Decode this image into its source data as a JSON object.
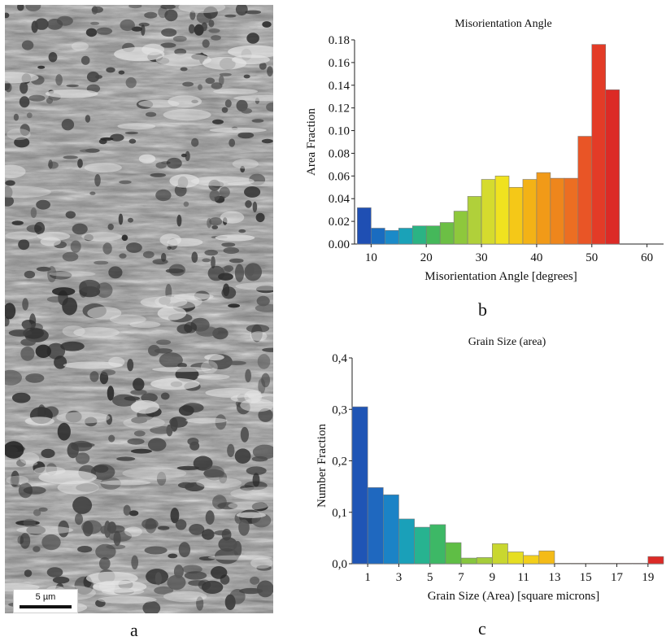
{
  "panels": {
    "a": {
      "letter": "a",
      "scale_bar_label": "5 µm"
    },
    "b": {
      "letter": "b"
    },
    "c": {
      "letter": "c"
    }
  },
  "chart_data": [
    {
      "type": "bar",
      "title": "Misorientation Angle",
      "xlabel": "Misorientation Angle [degrees]",
      "ylabel": "Area Fraction",
      "xlim": [
        7,
        63
      ],
      "ylim": [
        0,
        0.18
      ],
      "xticks": [
        10,
        20,
        30,
        40,
        50,
        60
      ],
      "yticks": [
        0.0,
        0.02,
        0.04,
        0.06,
        0.08,
        0.1,
        0.12,
        0.14,
        0.16,
        0.18
      ],
      "ytick_labels": [
        "0.00",
        "0.02",
        "0.04",
        "0.06",
        "0.08",
        "0.10",
        "0.12",
        "0.14",
        "0.16",
        "0.18"
      ],
      "bin_width": 2.5,
      "bins_start": 7.5,
      "values": [
        0.032,
        0.014,
        0.012,
        0.014,
        0.016,
        0.016,
        0.019,
        0.029,
        0.042,
        0.057,
        0.06,
        0.05,
        0.057,
        0.063,
        0.058,
        0.058,
        0.095,
        0.176,
        0.136
      ],
      "colors": [
        "#1f4fb3",
        "#1a6cc0",
        "#1b8ac8",
        "#1aa2b8",
        "#2bb384",
        "#45b85a",
        "#6cbf45",
        "#8ec83c",
        "#b0d03a",
        "#d5db2e",
        "#f0e21f",
        "#f5c818",
        "#f3b216",
        "#f19a18",
        "#ee861c",
        "#ec6e22",
        "#e95526",
        "#e33b27",
        "#dc2a26"
      ],
      "grid": false
    },
    {
      "type": "bar",
      "title": "Grain Size (area)",
      "xlabel": "Grain Size (Area)  [square microns]",
      "ylabel": "Number Fraction",
      "xlim": [
        0,
        20
      ],
      "ylim": [
        0,
        0.4
      ],
      "xticks": [
        1,
        3,
        5,
        7,
        9,
        11,
        13,
        15,
        17,
        19
      ],
      "yticks": [
        0.0,
        0.1,
        0.2,
        0.3,
        0.4
      ],
      "ytick_labels": [
        "0,0",
        "0,1",
        "0,2",
        "0,3",
        "0,4"
      ],
      "bin_width": 1,
      "bins_start": 0,
      "values": [
        0.305,
        0.148,
        0.134,
        0.087,
        0.071,
        0.076,
        0.041,
        0.011,
        0.012,
        0.039,
        0.023,
        0.016,
        0.025,
        0.001,
        0.001,
        0.001,
        0.001,
        0.001,
        0.001,
        0.014
      ],
      "colors": [
        "#1f55b5",
        "#1f68bf",
        "#1b83c6",
        "#1aa0b9",
        "#27b390",
        "#3db866",
        "#5fbe45",
        "#86c63e",
        "#a6cd3a",
        "#c9d72f",
        "#e6de22",
        "#f3cf1a",
        "#f4bb17",
        "#f2a417",
        "#ef8f1a",
        "#ec7a1e",
        "#e96422",
        "#e64d24",
        "#e23a25",
        "#dc2a26"
      ],
      "grid": false
    }
  ]
}
